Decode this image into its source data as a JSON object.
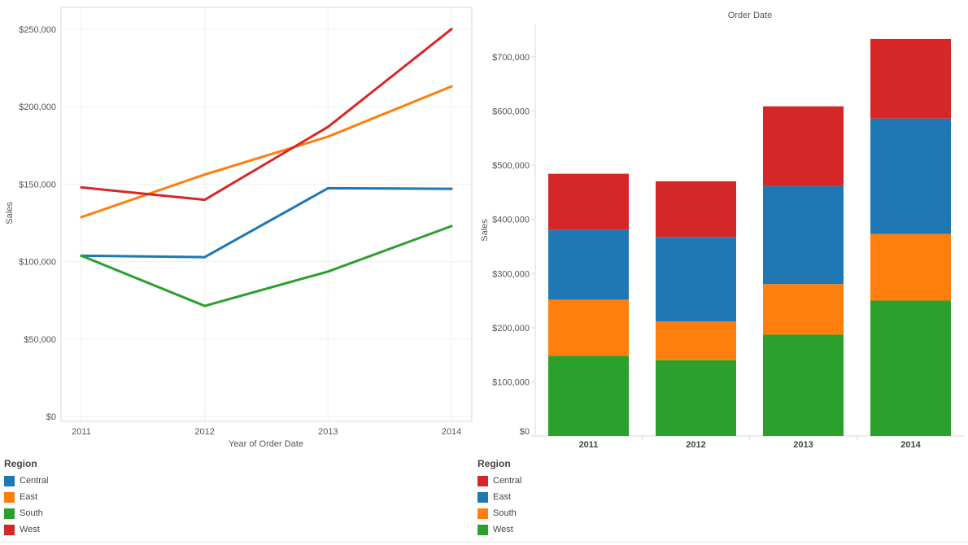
{
  "chart_data": [
    {
      "type": "line",
      "title": "",
      "xlabel": "Year of Order Date",
      "ylabel": "Sales",
      "x": [
        "2011",
        "2012",
        "2013",
        "2014"
      ],
      "ylim": [
        0,
        260000
      ],
      "yticks": [
        0,
        50000,
        100000,
        150000,
        200000,
        250000
      ],
      "ytick_labels": [
        "$0",
        "$50,000",
        "$100,000",
        "$150,000",
        "$200,000",
        "$250,000"
      ],
      "grid": true,
      "series": [
        {
          "name": "Central",
          "color": "#1f77b4",
          "values": [
            103800,
            102900,
            147400,
            147000
          ]
        },
        {
          "name": "East",
          "color": "#ff7f0e",
          "values": [
            128700,
            156200,
            180700,
            213100
          ]
        },
        {
          "name": "South",
          "color": "#2ca02c",
          "values": [
            103800,
            71400,
            93600,
            122900
          ]
        },
        {
          "name": "West",
          "color": "#d62728",
          "values": [
            147900,
            139900,
            187000,
            250100
          ]
        }
      ]
    },
    {
      "type": "bar",
      "stacked": true,
      "title": "Order Date",
      "xlabel": "",
      "ylabel": "Sales",
      "categories": [
        "2011",
        "2012",
        "2013",
        "2014"
      ],
      "ylim": [
        0,
        760000
      ],
      "yticks": [
        0,
        100000,
        200000,
        300000,
        400000,
        500000,
        600000,
        700000
      ],
      "ytick_labels": [
        "$0",
        "$100,000",
        "$200,000",
        "$300,000",
        "$400,000",
        "$500,000",
        "$600,000",
        "$700,000"
      ],
      "grid": false,
      "series": [
        {
          "name": "West",
          "color": "#2ca02c",
          "values": [
            147900,
            139900,
            187000,
            250100
          ]
        },
        {
          "name": "South",
          "color": "#ff7f0e",
          "values": [
            103800,
            71400,
            93600,
            122900
          ]
        },
        {
          "name": "East",
          "color": "#1f77b4",
          "values": [
            128700,
            156200,
            180700,
            213100
          ]
        },
        {
          "name": "Central",
          "color": "#d62728",
          "values": [
            103800,
            102900,
            147400,
            147000
          ]
        }
      ]
    }
  ],
  "legends": {
    "left": {
      "title": "Region",
      "items": [
        {
          "label": "Central",
          "color": "#1f77b4"
        },
        {
          "label": "East",
          "color": "#ff7f0e"
        },
        {
          "label": "South",
          "color": "#2ca02c"
        },
        {
          "label": "West",
          "color": "#d62728"
        }
      ]
    },
    "right": {
      "title": "Region",
      "items": [
        {
          "label": "Central",
          "color": "#d62728"
        },
        {
          "label": "East",
          "color": "#1f77b4"
        },
        {
          "label": "South",
          "color": "#ff7f0e"
        },
        {
          "label": "West",
          "color": "#2ca02c"
        }
      ]
    }
  }
}
